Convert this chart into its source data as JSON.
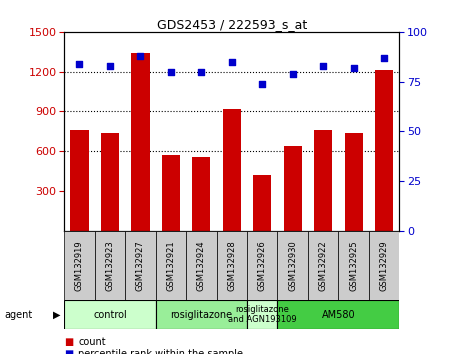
{
  "title": "GDS2453 / 222593_s_at",
  "samples": [
    "GSM132919",
    "GSM132923",
    "GSM132927",
    "GSM132921",
    "GSM132924",
    "GSM132928",
    "GSM132926",
    "GSM132930",
    "GSM132922",
    "GSM132925",
    "GSM132929"
  ],
  "counts": [
    760,
    740,
    1340,
    570,
    560,
    920,
    420,
    640,
    760,
    740,
    1210
  ],
  "percentiles": [
    84,
    83,
    88,
    80,
    80,
    85,
    74,
    79,
    83,
    82,
    87
  ],
  "ylim_left": [
    0,
    1500
  ],
  "ylim_right": [
    0,
    100
  ],
  "yticks_left": [
    300,
    600,
    900,
    1200,
    1500
  ],
  "yticks_right": [
    0,
    25,
    50,
    75,
    100
  ],
  "bar_color": "#cc0000",
  "dot_color": "#0000cc",
  "agent_groups": [
    {
      "label": "control",
      "start": 0,
      "end": 3,
      "color": "#ccffcc"
    },
    {
      "label": "rosiglitazone",
      "start": 3,
      "end": 6,
      "color": "#99ee99"
    },
    {
      "label": "rosiglitazone\nand AGN193109",
      "start": 6,
      "end": 7,
      "color": "#ccffcc"
    },
    {
      "label": "AM580",
      "start": 7,
      "end": 11,
      "color": "#44cc44"
    }
  ],
  "bg_color": "#ffffff",
  "tick_label_color_left": "#cc0000",
  "tick_label_color_right": "#0000cc",
  "dotted_lines": [
    600,
    900,
    1200
  ],
  "sample_box_color": "#cccccc",
  "agent_label": "agent"
}
